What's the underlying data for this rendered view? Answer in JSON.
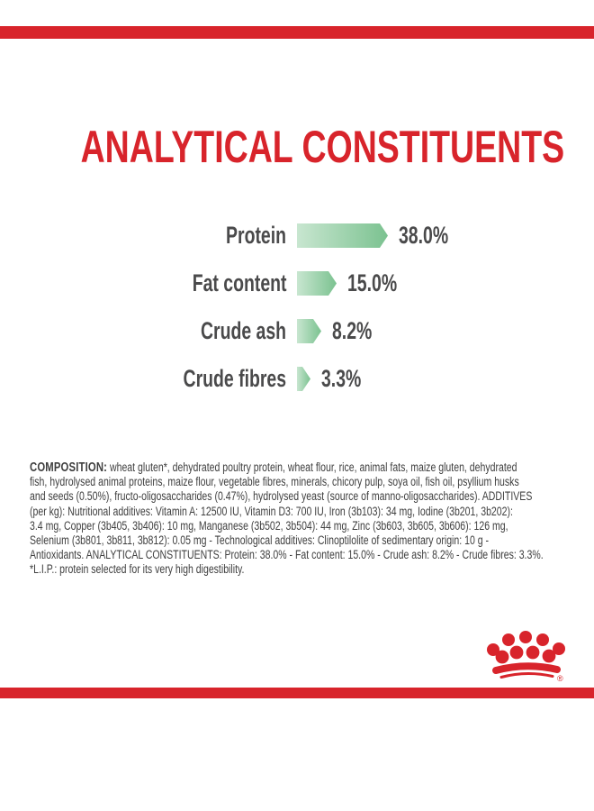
{
  "brand": {
    "red": "#d8242b",
    "text_dark": "#4a4a4b",
    "body_text": "#3e3e3e",
    "background": "#ffffff",
    "logo_name": "royal-canin-crown",
    "registered_mark": "®"
  },
  "title": "ANALYTICAL CONSTITUENTS",
  "chart_data": {
    "type": "bar",
    "orientation": "horizontal",
    "title": "ANALYTICAL CONSTITUENTS",
    "categories": [
      "Protein",
      "Fat content",
      "Crude ash",
      "Crude fibres"
    ],
    "values": [
      38.0,
      15.0,
      8.2,
      3.3
    ],
    "value_labels": [
      "38.0%",
      "15.0%",
      "8.2%",
      "3.3%"
    ],
    "unit": "%",
    "bar_gradient": [
      "#c8e6d0",
      "#7bc290"
    ],
    "label_color": "#4a4a4b",
    "axis": "none",
    "legend": "none",
    "grid": false
  },
  "composition": {
    "heading": "COMPOSITION:",
    "body": " wheat gluten*, dehydrated poultry protein, wheat flour, rice, animal fats, maize gluten, dehydrated\nfish, hydrolysed animal proteins, maize flour, vegetable fibres, minerals, chicory pulp, soya oil, fish oil, psyllium husks\nand seeds (0.50%), fructo-oligosaccharides (0.47%), hydrolysed yeast (source of manno-oligosaccharides). ADDITIVES\n(per kg): Nutritional additives: Vitamin A: 12500 IU, Vitamin D3: 700 IU, Iron (3b103): 34 mg, Iodine (3b201, 3b202):\n3.4 mg, Copper (3b405, 3b406): 10 mg, Manganese (3b502, 3b504): 44 mg, Zinc (3b603, 3b605, 3b606): 126 mg,\nSelenium (3b801, 3b811, 3b812): 0.05 mg - Technological additives: Clinoptilolite of sedimentary origin: 10 g -\nAntioxidants. ANALYTICAL CONSTITUENTS: Protein: 38.0% - Fat content: 15.0% - Crude ash: 8.2% - Crude fibres: 3.3%.\n*L.I.P.: protein selected for its very high digestibility."
  }
}
